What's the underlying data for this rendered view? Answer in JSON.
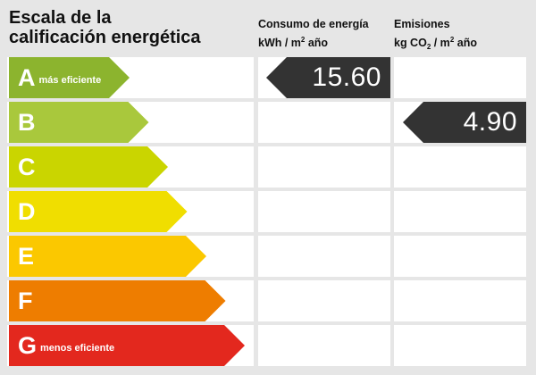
{
  "title": {
    "line1": "Escala de la",
    "line2": "calificación energética"
  },
  "consumption_header": {
    "line1": "Consumo de energía",
    "unit_prefix": "kWh / m",
    "unit_sup": "2",
    "unit_suffix": " año"
  },
  "emissions_header": {
    "line1": "Emisiones",
    "unit_prefix": "kg CO",
    "unit_sub": "2",
    "unit_mid": " / m",
    "unit_sup": "2",
    "unit_suffix": " año"
  },
  "classes": [
    {
      "letter": "A",
      "label": "más eficiente",
      "color": "#8cb42e"
    },
    {
      "letter": "B",
      "label": "",
      "color": "#a9c83c"
    },
    {
      "letter": "C",
      "label": "",
      "color": "#cad500"
    },
    {
      "letter": "D",
      "label": "",
      "color": "#f0de00"
    },
    {
      "letter": "E",
      "label": "",
      "color": "#fbc800"
    },
    {
      "letter": "F",
      "label": "",
      "color": "#ee7d00"
    },
    {
      "letter": "G",
      "label": "menos eficiente",
      "color": "#e3281e"
    }
  ],
  "consumption": {
    "class": "A",
    "value": "15.60"
  },
  "emissions": {
    "class": "B",
    "value": "4.90"
  },
  "indicator_color": "#333333"
}
